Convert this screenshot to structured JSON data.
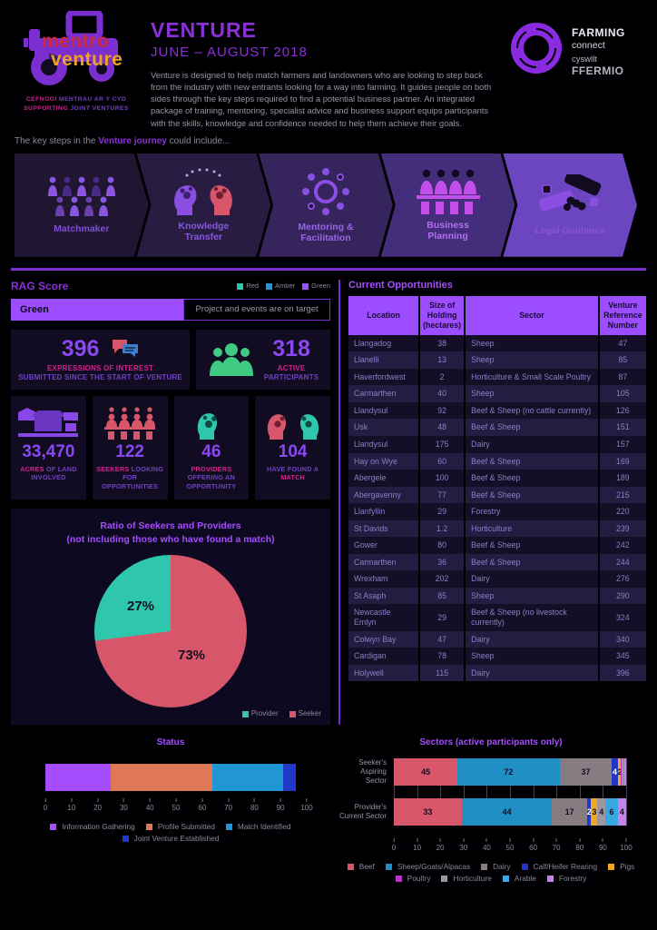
{
  "colors": {
    "accent_purple": "#8c2fd9",
    "bright_purple": "#9b4dff",
    "pink": "#d6218f",
    "teal": "#2ec7ae",
    "red": "#d8566a",
    "green": "#3fcc82",
    "body_gray": "#9b93a3"
  },
  "header": {
    "logo": {
      "word1": "mentro",
      "word2": "venture",
      "sub1_bold": "CEFNOGI",
      "sub1_rest": " MENTRAU AR Y CYD",
      "sub2_bold": "SUPPORTING",
      "sub2_rest": " JOINT VENTURES"
    },
    "title": "VENTURE",
    "subtitle": "JUNE – AUGUST 2018",
    "description": "Venture is designed to help match farmers and landowners who are looking to step back from the industry with new entrants looking for a way into farming. It guides people on both sides through the key steps required to find a potential business partner. An integrated package of training, mentoring, specialist advice and business support equips participants with the skills, knowledge and confidence needed to help them achieve their goals.",
    "partner_logo": {
      "line1": "FARMING",
      "line2": "connect",
      "line3": "cyswllt",
      "line4": "FFERMIO"
    }
  },
  "journey": {
    "intro_pre": "The key steps in the ",
    "intro_bold": "Venture journey",
    "intro_post": " could include...",
    "steps": [
      {
        "label": "Matchmaker",
        "icon": "crowd-icon",
        "bg": "#201632",
        "label_color": "#7e4fd6"
      },
      {
        "label": "Knowledge Transfer",
        "icon": "knowledge-transfer-icon",
        "bg": "#291c43",
        "label_color": "#8657da"
      },
      {
        "label": "Mentoring & Facilitation",
        "icon": "mentoring-icon",
        "bg": "#36255c",
        "label_color": "#9a63e8"
      },
      {
        "label": "Business Planning",
        "icon": "business-planning-icon",
        "bg": "#442d7a",
        "label_color": "#b26ff0"
      },
      {
        "label": "Legal Guidance",
        "icon": "handshake-icon",
        "bg": "#6b46c0",
        "label_color": "#8b52d6"
      }
    ]
  },
  "rag": {
    "title": "RAG Score",
    "legend": [
      {
        "label": "Red",
        "color": "#2ec7ae"
      },
      {
        "label": "Amber",
        "color": "#2196d4"
      },
      {
        "label": "Green",
        "color": "#9b4dff"
      }
    ],
    "value": "Green",
    "description": "Project and events are on target"
  },
  "stats": [
    {
      "value": "396",
      "pre": "",
      "strong": "EXPRESSIONS OF INTEREST",
      "rest": "SUBMITTED SINCE THE START OF VENTURE",
      "icon": "chat-bubbles-icon"
    },
    {
      "value": "318",
      "pre": "",
      "strong": "ACTIVE",
      "rest": "PARTICIPANTS",
      "icon": "group-icon"
    },
    {
      "value": "33,470",
      "pre": "",
      "strong": "ACRES",
      "rest": " OF LAND INVOLVED",
      "icon": "farmland-icon"
    },
    {
      "value": "122",
      "pre": "",
      "strong": "SEEKERS",
      "rest": " LOOKING FOR OPPORTUNITIES",
      "icon": "seekers-icon"
    },
    {
      "value": "46",
      "pre": "",
      "strong": "PROVIDERS",
      "rest": " OFFERING AN OPPORTUNITY",
      "icon": "provider-head-icon"
    },
    {
      "value": "104",
      "pre": "HAVE FOUND A ",
      "strong": "MATCH",
      "rest": "",
      "icon": "match-heads-icon"
    }
  ],
  "opportunities": {
    "title": "Current Opportunities",
    "columns": [
      "Location",
      "Size of Holding (hectares)",
      "Sector",
      "Venture Reference Number"
    ],
    "rows": [
      [
        "Llangadog",
        "38",
        "Sheep",
        "47"
      ],
      [
        "Llanelli",
        "13",
        "Sheep",
        "85"
      ],
      [
        "Haverfordwest",
        "2",
        "Horticulture & Small Scale Poultry",
        "87"
      ],
      [
        "Carmarthen",
        "40",
        "Sheep",
        "105"
      ],
      [
        "Llandysul",
        "92",
        "Beef & Sheep (no cattle currently)",
        "126"
      ],
      [
        "Usk",
        "48",
        "Beef & Sheep",
        "151"
      ],
      [
        "Llandysul",
        "175",
        "Dairy",
        "157"
      ],
      [
        "Hay on Wye",
        "60",
        "Beef & Sheep",
        "169"
      ],
      [
        "Abergele",
        "100",
        "Beef & Sheep",
        "189"
      ],
      [
        "Abergavenny",
        "77",
        "Beef & Sheep",
        "215"
      ],
      [
        "Llanfyllin",
        "29",
        "Forestry",
        "220"
      ],
      [
        "St Davids",
        "1.2",
        "Horticulture",
        "239"
      ],
      [
        "Gower",
        "80",
        "Beef & Sheep",
        "242"
      ],
      [
        "Carmarthen",
        "36",
        "Beef & Sheep",
        "244"
      ],
      [
        "Wrexham",
        "202",
        "Dairy",
        "276"
      ],
      [
        "St Asaph",
        "85",
        "Sheep",
        "290"
      ],
      [
        "Newcastle Emlyn",
        "29",
        "Beef & Sheep (no livestock currently)",
        "324"
      ],
      [
        "Colwyn Bay",
        "47",
        "Dairy",
        "340"
      ],
      [
        "Cardigan",
        "78",
        "Sheep",
        "345"
      ],
      [
        "Holywell",
        "115",
        "Dairy",
        "396"
      ]
    ]
  },
  "chart_data": [
    {
      "type": "pie",
      "title": "Ratio of Seekers and Providers",
      "subtitle": "(not including those who have found a match)",
      "labels": [
        "Provider",
        "Seeker"
      ],
      "values": [
        27,
        73
      ],
      "unit": "%",
      "colors": [
        "#2ec7ae",
        "#d8566a"
      ],
      "display_labels": [
        "27%",
        "73%"
      ],
      "legend_position": "bottom-right"
    },
    {
      "type": "bar",
      "stacked": true,
      "orientation": "horizontal",
      "title": "Status",
      "categories": [
        ""
      ],
      "series": [
        {
          "name": "Information Gathering",
          "color": "#a64dff",
          "values": [
            25
          ]
        },
        {
          "name": "Profile Submitted",
          "color": "#e07858",
          "values": [
            39
          ]
        },
        {
          "name": "Match Identified",
          "color": "#2196d4",
          "values": [
            27
          ]
        },
        {
          "name": "Joint Venture Established",
          "color": "#2038c8",
          "values": [
            5
          ]
        }
      ],
      "xlim": [
        0,
        100
      ],
      "xtick_step": 10,
      "legend_position": "bottom"
    },
    {
      "type": "bar",
      "stacked": true,
      "orientation": "horizontal",
      "title": "Sectors (active participants only)",
      "categories": [
        "Seeker's Aspiring Sector",
        "Provider's Current Sector"
      ],
      "series": [
        {
          "name": "Beef",
          "color": "#d8566a",
          "labelColor": "#141022",
          "values": [
            45,
            33
          ]
        },
        {
          "name": "Sheep/Goats/Alpacas",
          "color": "#1f8fc4",
          "labelColor": "#141022",
          "values": [
            72,
            44
          ]
        },
        {
          "name": "Dairy",
          "color": "#867c82",
          "labelColor": "#141022",
          "values": [
            37,
            17
          ]
        },
        {
          "name": "Calf/Heifer Rearing",
          "color": "#2336c8",
          "labelColor": "#ffffff",
          "values": [
            4,
            2
          ]
        },
        {
          "name": "Pigs",
          "color": "#f0a820",
          "labelColor": "#141022",
          "values": [
            2,
            3
          ]
        },
        {
          "name": "Poultry",
          "color": "#b833cc",
          "labelColor": "#141022",
          "values": [
            1,
            0
          ]
        },
        {
          "name": "Horticulture",
          "color": "#9f97a0",
          "labelColor": "#141022",
          "values": [
            1,
            4
          ]
        },
        {
          "name": "Arable",
          "color": "#3aa8e0",
          "labelColor": "#141022",
          "values": [
            1,
            6
          ]
        },
        {
          "name": "Forestry",
          "color": "#c583ea",
          "labelColor": "#141022",
          "values": [
            1,
            4
          ]
        }
      ],
      "xlim": [
        0,
        100
      ],
      "xtick_step": 10,
      "note": "each row normalized to full axis width; labels show raw counts",
      "grid": true,
      "legend_position": "bottom"
    }
  ]
}
